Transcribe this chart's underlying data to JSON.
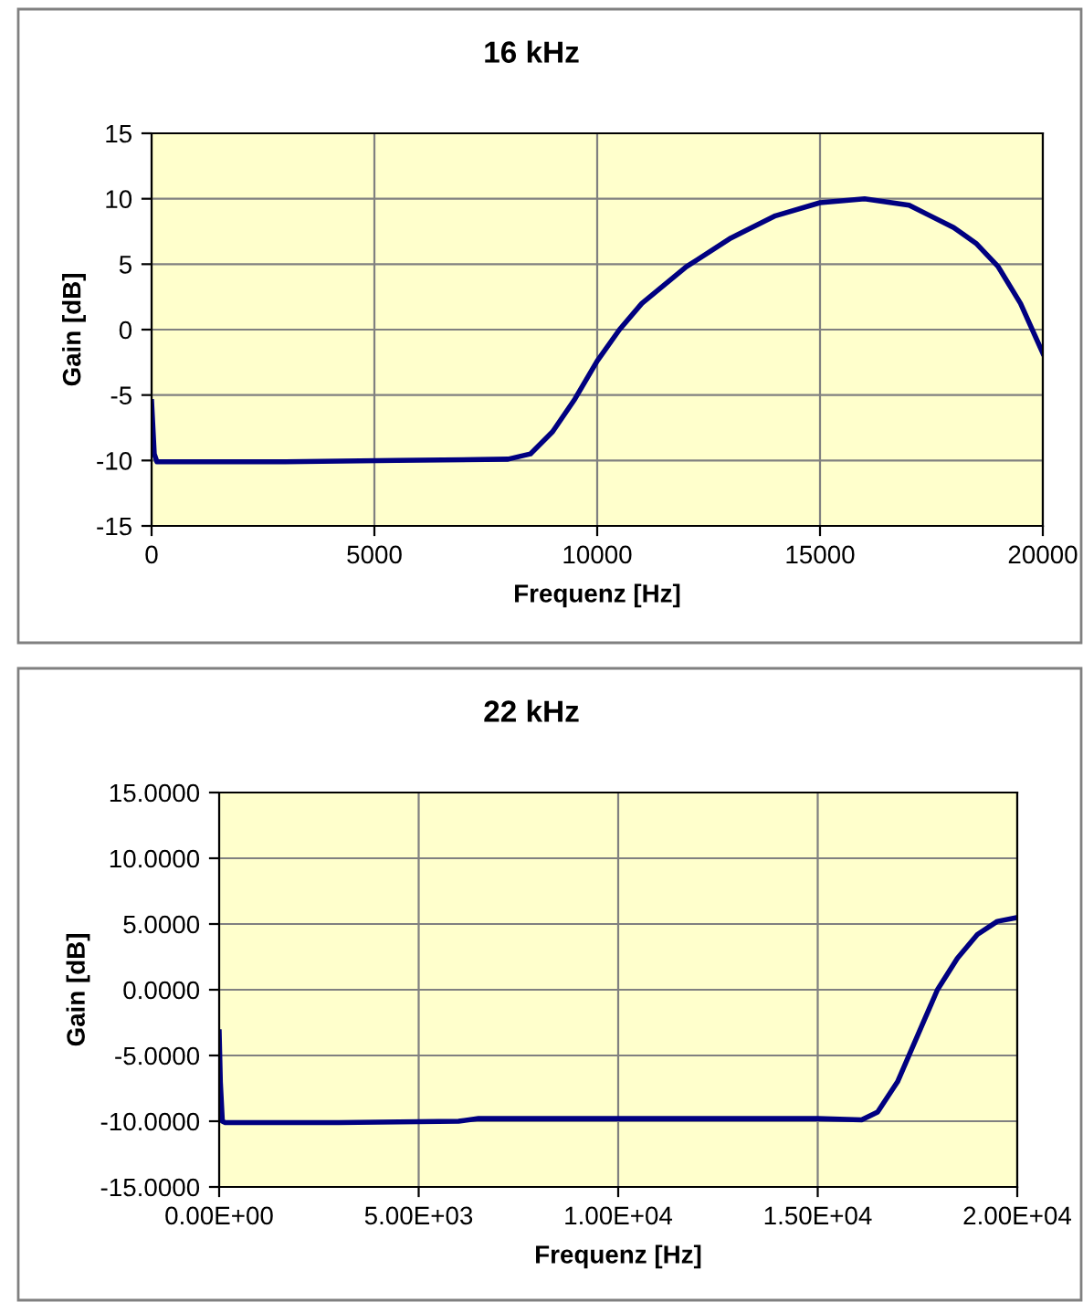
{
  "chart_data": [
    {
      "type": "line",
      "title": "16 kHz",
      "xlabel": "Frequenz [Hz]",
      "ylabel": "Gain [dB]",
      "xlim": [
        0,
        20000
      ],
      "ylim": [
        -15,
        15
      ],
      "xticks": [
        0,
        5000,
        10000,
        15000,
        20000
      ],
      "yticks": [
        -15,
        -10,
        -5,
        0,
        5,
        10,
        15
      ],
      "grid": true,
      "marker": "none",
      "line_style": "solid",
      "series": [
        {
          "color": "#000080",
          "x": [
            0,
            60,
            120,
            3000,
            5500,
            8000,
            8500,
            9000,
            9500,
            10000,
            10500,
            11000,
            12000,
            13000,
            14000,
            15000,
            16000,
            17000,
            18000,
            18500,
            19000,
            19500,
            20000
          ],
          "values": [
            -5.5,
            -9.5,
            -10.1,
            -10.1,
            -10,
            -9.9,
            -9.5,
            -7.8,
            -5.3,
            -2.4,
            0,
            2,
            4.8,
            7,
            8.7,
            9.7,
            10,
            9.5,
            7.8,
            6.6,
            4.8,
            2,
            -1.8
          ]
        }
      ]
    },
    {
      "type": "line",
      "title": "22 kHz",
      "xlabel": "Frequenz [Hz]",
      "ylabel": "Gain [dB]",
      "xlim": [
        0,
        20000
      ],
      "ylim": [
        -15,
        15
      ],
      "xticks": [
        {
          "value": 0,
          "label": "0.00E+00"
        },
        {
          "value": 5000,
          "label": "5.00E+03"
        },
        {
          "value": 10000,
          "label": "1.00E+04"
        },
        {
          "value": 15000,
          "label": "1.50E+04"
        },
        {
          "value": 20000,
          "label": "2.00E+04"
        }
      ],
      "yticks": [
        {
          "value": -15,
          "label": "-15.0000"
        },
        {
          "value": -10,
          "label": "-10.0000"
        },
        {
          "value": -5,
          "label": "-5.0000"
        },
        {
          "value": 0,
          "label": "0.0000"
        },
        {
          "value": 5,
          "label": "5.0000"
        },
        {
          "value": 10,
          "label": "10.0000"
        },
        {
          "value": 15,
          "label": "15.0000"
        }
      ],
      "grid": true,
      "marker": "none",
      "line_style": "solid",
      "series": [
        {
          "color": "#000080",
          "x": [
            0,
            30,
            80,
            150,
            3000,
            6000,
            6500,
            15000,
            16100,
            16500,
            17000,
            17500,
            18000,
            18500,
            19000,
            19500,
            20000
          ],
          "values": [
            -3.2,
            -7,
            -10,
            -10.1,
            -10.1,
            -10,
            -9.8,
            -9.8,
            -9.9,
            -9.3,
            -7,
            -3.5,
            0,
            2.4,
            4.2,
            5.2,
            5.5
          ]
        }
      ]
    }
  ]
}
